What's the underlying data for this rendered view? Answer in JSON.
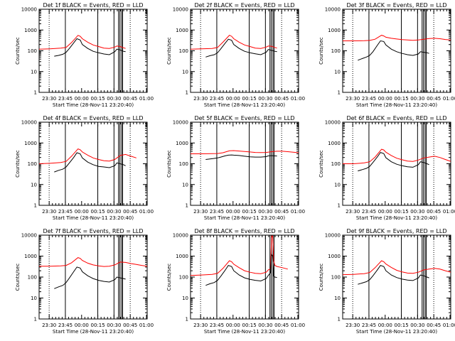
{
  "colors": {
    "events": "#000000",
    "lld": "#ff0000",
    "background": "#ffffff",
    "axis": "#000000"
  },
  "shared": {
    "xlabel": "Start Time (28-Nov-11 23:20:40)",
    "ylabel": "Counts/sec",
    "x_ticks": [
      "23:30",
      "23:45",
      "00:00",
      "00:15",
      "00:30",
      "00:45",
      "01:00"
    ],
    "y_ticks": [
      "1",
      "10",
      "100",
      "1000",
      "10000"
    ],
    "vlines_dotted_min": [
      9.3,
      84.3
    ],
    "vlines_solid_min": [
      24.3,
      54.3,
      69.3,
      73.5,
      74.8,
      76.3,
      77.3
    ]
  },
  "chart_data": [
    {
      "type": "line",
      "title": "Det 1f BLACK = Events, RED = LLD",
      "xlabel": "Start Time (28-Nov-11 23:20:40)",
      "ylabel": "Counts/sec",
      "yscale": "log",
      "ylim": [
        1,
        10000
      ],
      "x_units": "minutes from 23:20:40",
      "xlim": [
        0,
        100
      ],
      "series": [
        {
          "name": "LLD",
          "color": "#ff0000",
          "x": [
            0,
            10,
            20,
            25,
            30,
            36,
            38,
            40,
            45,
            50,
            55,
            60,
            65,
            70,
            72,
            75,
            78,
            80
          ],
          "y": [
            120,
            125,
            135,
            145,
            250,
            550,
            500,
            380,
            260,
            190,
            160,
            135,
            130,
            150,
            170,
            160,
            140,
            130
          ]
        },
        {
          "name": "Events",
          "color": "#000000",
          "x": [
            14,
            18,
            22,
            25,
            28,
            32,
            35,
            38,
            40,
            45,
            50,
            55,
            60,
            65,
            70,
            72,
            75,
            78,
            80
          ],
          "y": [
            55,
            60,
            68,
            85,
            130,
            240,
            380,
            330,
            200,
            130,
            95,
            80,
            70,
            65,
            90,
            120,
            110,
            95,
            90
          ]
        }
      ]
    },
    {
      "type": "line",
      "title": "Det 2f BLACK = Events, RED = LLD",
      "xlabel": "Start Time (28-Nov-11 23:20:40)",
      "ylabel": "Counts/sec",
      "yscale": "log",
      "ylim": [
        1,
        10000
      ],
      "x_units": "minutes from 23:20:40",
      "xlim": [
        0,
        100
      ],
      "series": [
        {
          "name": "LLD",
          "color": "#ff0000",
          "x": [
            0,
            10,
            20,
            25,
            30,
            36,
            38,
            40,
            45,
            50,
            55,
            60,
            65,
            70,
            72,
            75,
            78,
            80
          ],
          "y": [
            120,
            125,
            130,
            145,
            260,
            560,
            500,
            380,
            260,
            190,
            160,
            135,
            130,
            150,
            170,
            165,
            145,
            135
          ]
        },
        {
          "name": "Events",
          "color": "#000000",
          "x": [
            14,
            18,
            22,
            25,
            28,
            32,
            35,
            38,
            40,
            45,
            50,
            55,
            60,
            65,
            70,
            72,
            75,
            78,
            80
          ],
          "y": [
            50,
            58,
            65,
            80,
            125,
            230,
            360,
            320,
            200,
            130,
            95,
            80,
            72,
            65,
            85,
            115,
            105,
            95,
            90
          ]
        }
      ]
    },
    {
      "type": "line",
      "title": "Det 3f BLACK = Events, RED = LLD",
      "xlabel": "Start Time (28-Nov-11 23:20:40)",
      "ylabel": "Counts/sec",
      "yscale": "log",
      "ylim": [
        1,
        10000
      ],
      "x_units": "minutes from 23:20:40",
      "xlim": [
        0,
        100
      ],
      "series": [
        {
          "name": "LLD",
          "color": "#ff0000",
          "x": [
            0,
            10,
            20,
            25,
            30,
            36,
            38,
            40,
            45,
            50,
            55,
            60,
            65,
            70,
            75,
            80,
            85,
            90,
            95,
            100
          ],
          "y": [
            300,
            300,
            305,
            315,
            360,
            560,
            520,
            450,
            400,
            370,
            345,
            330,
            320,
            330,
            360,
            390,
            400,
            380,
            350,
            330
          ]
        },
        {
          "name": "Events",
          "color": "#000000",
          "x": [
            14,
            18,
            22,
            25,
            28,
            32,
            35,
            38,
            40,
            45,
            50,
            55,
            60,
            65,
            70,
            72,
            75,
            78,
            80
          ],
          "y": [
            35,
            42,
            50,
            60,
            90,
            180,
            300,
            280,
            190,
            120,
            90,
            75,
            65,
            60,
            70,
            90,
            85,
            80,
            75
          ]
        }
      ]
    },
    {
      "type": "line",
      "title": "Det 4f BLACK = Events, RED = LLD",
      "xlabel": "Start Time (28-Nov-11 23:20:40)",
      "ylabel": "Counts/sec",
      "yscale": "log",
      "ylim": [
        1,
        10000
      ],
      "x_units": "minutes from 23:20:40",
      "xlim": [
        0,
        100
      ],
      "series": [
        {
          "name": "LLD",
          "color": "#ff0000",
          "x": [
            0,
            10,
            20,
            25,
            30,
            36,
            38,
            40,
            45,
            50,
            55,
            60,
            65,
            70,
            75,
            80,
            85,
            90
          ],
          "y": [
            100,
            105,
            115,
            130,
            230,
            520,
            470,
            370,
            260,
            190,
            160,
            140,
            135,
            160,
            250,
            280,
            230,
            190
          ]
        },
        {
          "name": "Events",
          "color": "#000000",
          "x": [
            14,
            18,
            22,
            25,
            28,
            32,
            35,
            38,
            40,
            45,
            50,
            55,
            60,
            65,
            70,
            72,
            75,
            78,
            80
          ],
          "y": [
            40,
            48,
            55,
            70,
            110,
            200,
            340,
            300,
            190,
            120,
            90,
            75,
            70,
            65,
            80,
            110,
            100,
            90,
            80
          ]
        }
      ]
    },
    {
      "type": "line",
      "title": "Det 5f BLACK = Events, RED = LLD",
      "xlabel": "Start Time (28-Nov-11 23:20:40)",
      "ylabel": "Counts/sec",
      "yscale": "log",
      "ylim": [
        1,
        10000
      ],
      "x_units": "minutes from 23:20:40",
      "xlim": [
        0,
        100
      ],
      "series": [
        {
          "name": "LLD",
          "color": "#ff0000",
          "x": [
            0,
            10,
            20,
            25,
            30,
            36,
            40,
            45,
            50,
            55,
            60,
            65,
            70,
            75,
            80,
            85,
            90,
            95,
            100
          ],
          "y": [
            300,
            300,
            305,
            310,
            340,
            420,
            430,
            410,
            390,
            370,
            350,
            345,
            350,
            380,
            400,
            400,
            380,
            360,
            340
          ]
        },
        {
          "name": "Events",
          "color": "#000000",
          "x": [
            14,
            18,
            22,
            25,
            28,
            32,
            35,
            38,
            40,
            45,
            50,
            55,
            60,
            65,
            70,
            72,
            75,
            78,
            80
          ],
          "y": [
            160,
            170,
            180,
            190,
            210,
            240,
            260,
            265,
            260,
            250,
            230,
            215,
            210,
            210,
            220,
            240,
            245,
            240,
            235
          ]
        }
      ]
    },
    {
      "type": "line",
      "title": "Det 6f BLACK = Events, RED = LLD",
      "xlabel": "Start Time (28-Nov-11 23:20:40)",
      "ylabel": "Counts/sec",
      "yscale": "log",
      "ylim": [
        1,
        10000
      ],
      "x_units": "minutes from 23:20:40",
      "xlim": [
        0,
        100
      ],
      "series": [
        {
          "name": "LLD",
          "color": "#ff0000",
          "x": [
            0,
            10,
            20,
            25,
            30,
            36,
            38,
            40,
            45,
            50,
            55,
            60,
            65,
            70,
            75,
            80,
            85,
            90,
            95,
            100
          ],
          "y": [
            100,
            100,
            110,
            125,
            210,
            500,
            460,
            360,
            250,
            185,
            155,
            135,
            130,
            150,
            190,
            210,
            230,
            200,
            160,
            130
          ]
        },
        {
          "name": "Events",
          "color": "#000000",
          "x": [
            14,
            18,
            22,
            25,
            28,
            32,
            35,
            38,
            40,
            45,
            50,
            55,
            60,
            65,
            70,
            72,
            75,
            78,
            80
          ],
          "y": [
            45,
            52,
            60,
            75,
            115,
            210,
            350,
            310,
            195,
            125,
            95,
            80,
            72,
            68,
            90,
            125,
            115,
            100,
            90
          ]
        }
      ]
    },
    {
      "type": "line",
      "title": "Det 7f BLACK = Events, RED = LLD",
      "xlabel": "Start Time (28-Nov-11 23:20:40)",
      "ylabel": "Counts/sec",
      "yscale": "log",
      "ylim": [
        1,
        10000
      ],
      "x_units": "minutes from 23:20:40",
      "xlim": [
        0,
        100
      ],
      "series": [
        {
          "name": "LLD",
          "color": "#ff0000",
          "x": [
            0,
            10,
            20,
            25,
            30,
            36,
            38,
            40,
            45,
            50,
            55,
            60,
            65,
            70,
            75,
            80,
            85,
            90,
            95,
            100
          ],
          "y": [
            330,
            330,
            340,
            360,
            480,
            850,
            780,
            620,
            460,
            380,
            340,
            320,
            330,
            380,
            520,
            500,
            440,
            400,
            360,
            330
          ]
        },
        {
          "name": "Events",
          "color": "#000000",
          "x": [
            14,
            18,
            22,
            25,
            28,
            32,
            35,
            38,
            40,
            45,
            50,
            55,
            60,
            65,
            70,
            72,
            75,
            78,
            80
          ],
          "y": [
            28,
            34,
            40,
            55,
            90,
            180,
            300,
            270,
            180,
            115,
            85,
            70,
            62,
            58,
            75,
            100,
            92,
            85,
            80
          ]
        }
      ]
    },
    {
      "type": "line",
      "title": "Det 8f BLACK = Events, RED = LLD",
      "xlabel": "Start Time (28-Nov-11 23:20:40)",
      "ylabel": "Counts/sec",
      "yscale": "log",
      "ylim": [
        1,
        10000
      ],
      "x_units": "minutes from 23:20:40",
      "xlim": [
        0,
        100
      ],
      "series": [
        {
          "name": "LLD",
          "color": "#ff0000",
          "x": [
            0,
            10,
            20,
            25,
            30,
            36,
            38,
            40,
            45,
            50,
            55,
            60,
            65,
            70,
            72,
            74,
            75,
            76,
            77,
            78,
            80,
            85,
            90
          ],
          "y": [
            120,
            125,
            135,
            150,
            260,
            600,
            540,
            410,
            280,
            200,
            170,
            150,
            145,
            170,
            220,
            250,
            9000,
            9000,
            600,
            360,
            320,
            280,
            240
          ]
        },
        {
          "name": "Events",
          "color": "#000000",
          "x": [
            14,
            18,
            22,
            25,
            28,
            32,
            35,
            38,
            40,
            45,
            50,
            55,
            60,
            65,
            70,
            72,
            74,
            75,
            76,
            77,
            78,
            80
          ],
          "y": [
            40,
            48,
            55,
            70,
            110,
            210,
            360,
            320,
            200,
            125,
            92,
            78,
            70,
            65,
            85,
            120,
            160,
            1200,
            1000,
            110,
            100,
            95
          ]
        }
      ]
    },
    {
      "type": "line",
      "title": "Det 9f BLACK = Events, RED = LLD",
      "xlabel": "Start Time (28-Nov-11 23:20:40)",
      "ylabel": "Counts/sec",
      "yscale": "log",
      "ylim": [
        1,
        10000
      ],
      "x_units": "minutes from 23:20:40",
      "xlim": [
        0,
        100
      ],
      "series": [
        {
          "name": "LLD",
          "color": "#ff0000",
          "x": [
            0,
            10,
            20,
            25,
            30,
            36,
            38,
            40,
            45,
            50,
            55,
            60,
            65,
            70,
            75,
            80,
            85,
            90,
            95,
            100
          ],
          "y": [
            130,
            135,
            145,
            165,
            280,
            600,
            540,
            420,
            290,
            210,
            175,
            155,
            150,
            170,
            220,
            240,
            260,
            240,
            200,
            170
          ]
        },
        {
          "name": "Events",
          "color": "#000000",
          "x": [
            14,
            18,
            22,
            25,
            28,
            32,
            35,
            38,
            40,
            45,
            50,
            55,
            60,
            65,
            70,
            72,
            75,
            78,
            80
          ],
          "y": [
            45,
            52,
            60,
            75,
            115,
            215,
            360,
            320,
            200,
            125,
            95,
            80,
            72,
            68,
            90,
            125,
            115,
            100,
            92
          ]
        }
      ]
    }
  ]
}
